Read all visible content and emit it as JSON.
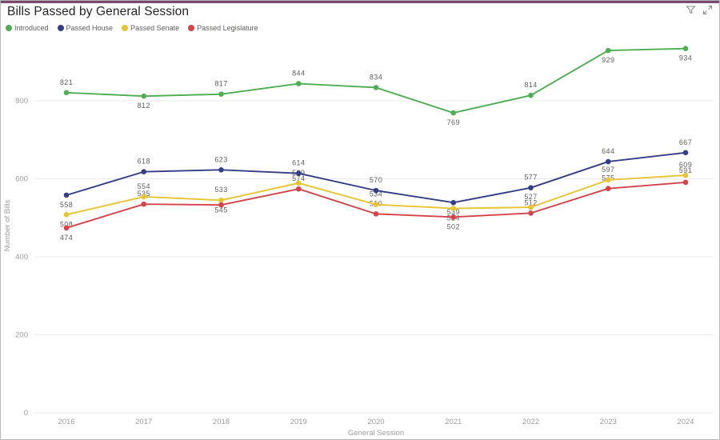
{
  "header": {
    "title": "Bills Passed by General Session",
    "icons": [
      {
        "name": "filter-icon"
      },
      {
        "name": "focus-mode-icon"
      }
    ]
  },
  "colors": {
    "accent_bar": "#6b3a62",
    "introduced": "#4dae52",
    "passed_house": "#343e87",
    "passed_senate": "#e8c430",
    "passed_legislature": "#d64249",
    "grid": "#ebebeb",
    "axis_text": "#9d9d9d",
    "label_text": "#605e5c"
  },
  "chart_data": {
    "type": "line",
    "title": "Bills Passed by General Session",
    "xlabel": "General Session",
    "ylabel": "Number of Bills",
    "categories": [
      "2016",
      "2017",
      "2018",
      "2019",
      "2020",
      "2021",
      "2022",
      "2023",
      "2024"
    ],
    "y_ticks": [
      0,
      200,
      400,
      600,
      800
    ],
    "ylim": [
      0,
      985
    ],
    "grid": true,
    "legend_position": "top-left",
    "series": [
      {
        "name": "Introduced",
        "color": "#4dae52",
        "values": [
          821,
          812,
          817,
          844,
          834,
          769,
          814,
          929,
          934
        ],
        "label_side": [
          "above",
          "below",
          "above",
          "above",
          "above",
          "below",
          "above",
          "below",
          "below"
        ]
      },
      {
        "name": "Passed House",
        "color": "#343e87",
        "values": [
          558,
          618,
          623,
          614,
          570,
          539,
          577,
          644,
          667
        ],
        "label_side": [
          "below",
          "above",
          "above",
          "above",
          "above",
          "below",
          "above",
          "above",
          "above"
        ]
      },
      {
        "name": "Passed Senate",
        "color": "#e8c430",
        "values": [
          508,
          554,
          545,
          589,
          534,
          524,
          527,
          597,
          609
        ],
        "label_side": [
          "below",
          "above",
          "below",
          "above",
          "above",
          "below",
          "above",
          "above",
          "above"
        ]
      },
      {
        "name": "Passed Legislature",
        "color": "#d64249",
        "values": [
          474,
          535,
          533,
          574,
          510,
          502,
          512,
          575,
          591
        ],
        "label_side": [
          "below",
          "above",
          "above",
          "above",
          "above",
          "below",
          "above",
          "above",
          "above"
        ]
      }
    ]
  }
}
